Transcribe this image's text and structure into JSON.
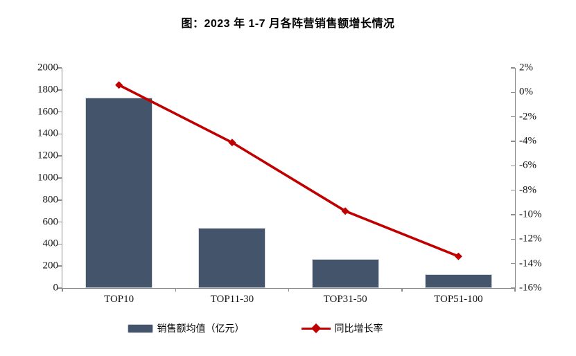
{
  "figure": {
    "title": "图：2023 年 1-7 月各阵营销售额增长情况"
  },
  "chart_data": {
    "type": "combo-bar-line",
    "categories": [
      "TOP10",
      "TOP11-30",
      "TOP31-50",
      "TOP51-100"
    ],
    "series": [
      {
        "name": "销售额均值（亿元）",
        "type": "bar",
        "axis": "left",
        "values": [
          1730,
          545,
          265,
          127
        ],
        "color": "#44546A"
      },
      {
        "name": "同比增长率",
        "type": "line",
        "axis": "right",
        "marker": "diamond",
        "values_pct": [
          0.6,
          -4.1,
          -9.7,
          -13.4
        ],
        "color": "#C00000"
      }
    ],
    "left_axis": {
      "min": 0,
      "max": 2000,
      "step": 200,
      "ticks": [
        "2000",
        "1800",
        "1600",
        "1400",
        "1200",
        "1000",
        "800",
        "600",
        "400",
        "200",
        "0"
      ]
    },
    "right_axis": {
      "min": -16,
      "max": 2,
      "step": 2,
      "ticks": [
        "2%",
        "0%",
        "-2%",
        "-4%",
        "-6%",
        "-8%",
        "-10%",
        "-12%",
        "-14%",
        "-16%"
      ]
    },
    "grid": false,
    "plot_background": "#ffffff",
    "axis_color": "#8c8c8c",
    "legend_position": "bottom"
  },
  "legend": {
    "items": [
      {
        "label": "销售额均值（亿元）",
        "swatch": "bar",
        "color": "#44546A"
      },
      {
        "label": "同比增长率",
        "swatch": "line-diamond",
        "color": "#C00000"
      }
    ]
  }
}
